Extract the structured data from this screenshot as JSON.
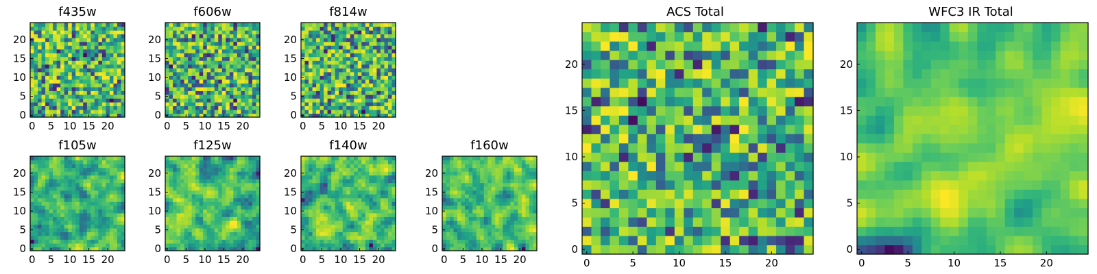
{
  "chart_data": [
    {
      "type": "heatmap",
      "title": "f435w",
      "colormap": "viridis",
      "grid": false,
      "xlim": [
        0,
        24
      ],
      "ylim": [
        0,
        24
      ],
      "xticks": [
        "0",
        "5",
        "10",
        "15",
        "20"
      ],
      "yticks": [
        "0",
        "5",
        "10",
        "15",
        "20"
      ],
      "rows": 25,
      "cols": 25,
      "smoothness": 0,
      "seed": 11
    },
    {
      "type": "heatmap",
      "title": "f606w",
      "colormap": "viridis",
      "grid": false,
      "xlim": [
        0,
        24
      ],
      "ylim": [
        0,
        24
      ],
      "xticks": [
        "0",
        "5",
        "10",
        "15",
        "20"
      ],
      "yticks": [
        "0",
        "5",
        "10",
        "15",
        "20"
      ],
      "rows": 25,
      "cols": 25,
      "smoothness": 0,
      "seed": 23
    },
    {
      "type": "heatmap",
      "title": "f814w",
      "colormap": "viridis",
      "grid": false,
      "xlim": [
        0,
        24
      ],
      "ylim": [
        0,
        24
      ],
      "xticks": [
        "0",
        "5",
        "10",
        "15",
        "20"
      ],
      "yticks": [
        "0",
        "5",
        "10",
        "15",
        "20"
      ],
      "rows": 25,
      "cols": 25,
      "smoothness": 0,
      "seed": 37
    },
    {
      "type": "heatmap",
      "title": "f105w",
      "colormap": "viridis",
      "grid": false,
      "xlim": [
        0,
        24
      ],
      "ylim": [
        0,
        24
      ],
      "xticks": [
        "0",
        "5",
        "10",
        "15",
        "20"
      ],
      "yticks": [
        "0",
        "5",
        "10",
        "15",
        "20"
      ],
      "rows": 25,
      "cols": 25,
      "smoothness": 1,
      "seed": 41
    },
    {
      "type": "heatmap",
      "title": "f125w",
      "colormap": "viridis",
      "grid": false,
      "xlim": [
        0,
        24
      ],
      "ylim": [
        0,
        24
      ],
      "xticks": [
        "0",
        "5",
        "10",
        "15",
        "20"
      ],
      "yticks": [
        "0",
        "5",
        "10",
        "15",
        "20"
      ],
      "rows": 25,
      "cols": 25,
      "smoothness": 1,
      "seed": 53
    },
    {
      "type": "heatmap",
      "title": "f140w",
      "colormap": "viridis",
      "grid": false,
      "xlim": [
        0,
        24
      ],
      "ylim": [
        0,
        24
      ],
      "xticks": [
        "0",
        "5",
        "10",
        "15",
        "20"
      ],
      "yticks": [
        "0",
        "5",
        "10",
        "15",
        "20"
      ],
      "rows": 25,
      "cols": 25,
      "smoothness": 1,
      "seed": 67
    },
    {
      "type": "heatmap",
      "title": "f160w",
      "colormap": "viridis",
      "grid": false,
      "xlim": [
        0,
        24
      ],
      "ylim": [
        0,
        24
      ],
      "xticks": [
        "0",
        "5",
        "10",
        "15",
        "20"
      ],
      "yticks": [
        "0",
        "5",
        "10",
        "15",
        "20"
      ],
      "rows": 25,
      "cols": 25,
      "smoothness": 1,
      "seed": 79
    },
    {
      "type": "heatmap",
      "title": "ACS Total",
      "colormap": "viridis",
      "grid": false,
      "xlim": [
        0,
        24
      ],
      "ylim": [
        0,
        24
      ],
      "xticks": [
        "0",
        "5",
        "10",
        "15",
        "20"
      ],
      "yticks": [
        "0",
        "5",
        "10",
        "15",
        "20"
      ],
      "rows": 25,
      "cols": 25,
      "smoothness": 0,
      "seed": 83
    },
    {
      "type": "heatmap",
      "title": "WFC3 IR Total",
      "colormap": "viridis",
      "grid": false,
      "xlim": [
        0,
        24
      ],
      "ylim": [
        0,
        24
      ],
      "xticks": [
        "0",
        "5",
        "10",
        "15",
        "20"
      ],
      "yticks": [
        "0",
        "5",
        "10",
        "15",
        "20"
      ],
      "rows": 25,
      "cols": 25,
      "smoothness": 2,
      "seed": 97
    }
  ]
}
